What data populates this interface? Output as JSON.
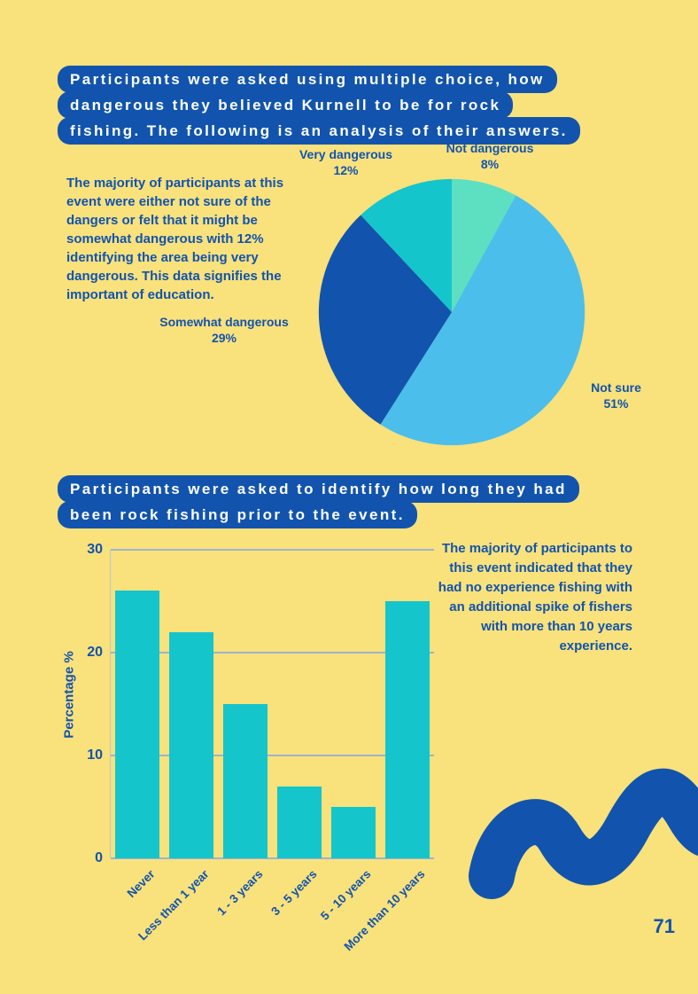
{
  "page": {
    "number": "71"
  },
  "colors": {
    "background": "#F9E17C",
    "blue": "#1254AD",
    "light_blue": "#4CBEEC",
    "teal": "#15C5CC",
    "mint": "#5CE0C1",
    "grid": "#9DB4CE",
    "white": "#FFFFFF"
  },
  "section1": {
    "title_lines": [
      "Participants were asked using multiple choice, how",
      "dangerous they believed Kurnell to be for rock",
      "fishing. The following is an analysis of their answers."
    ],
    "commentary": "The majority of participants at this event were either not sure of the dangers or felt that it might be somewhat dangerous with 12% identifying the area being very dangerous. This data signifies the important of education."
  },
  "section2": {
    "title_lines": [
      "Participants were asked to identify how long they had",
      "been rock fishing prior to the event."
    ],
    "commentary": "The majority of participants to this event indicated that they had no experience fishing with an additional spike of fishers with more than 10 years experience."
  },
  "chart_data": [
    {
      "type": "pie",
      "title": "How dangerous is Kurnell for rock fishing",
      "start_angle_deg": -90,
      "direction": "clockwise",
      "slices": [
        {
          "label": "Not dangerous",
          "pct_label": "8%",
          "value": 8,
          "color": "#5CE0C1"
        },
        {
          "label": "Not sure",
          "pct_label": "51%",
          "value": 51,
          "color": "#4CBEEC"
        },
        {
          "label": "Somewhat dangerous",
          "pct_label": "29%",
          "value": 29,
          "color": "#1254AD"
        },
        {
          "label": "Very dangerous",
          "pct_label": "12%",
          "value": 12,
          "color": "#15C5CC"
        }
      ]
    },
    {
      "type": "bar",
      "title": "Rock fishing experience prior to the event",
      "categories": [
        "Never",
        "Less than 1 year",
        "1 - 3 years",
        "3 - 5 years",
        "5 - 10 years",
        "More than 10 years"
      ],
      "values": [
        26,
        22,
        15,
        7,
        5,
        25
      ],
      "xlabel": "",
      "ylabel": "Percentage %",
      "yticks": [
        0,
        10,
        20,
        30
      ],
      "ylim": [
        0,
        30
      ],
      "bar_color": "#15C5CC",
      "grid": true,
      "legend": false
    }
  ]
}
